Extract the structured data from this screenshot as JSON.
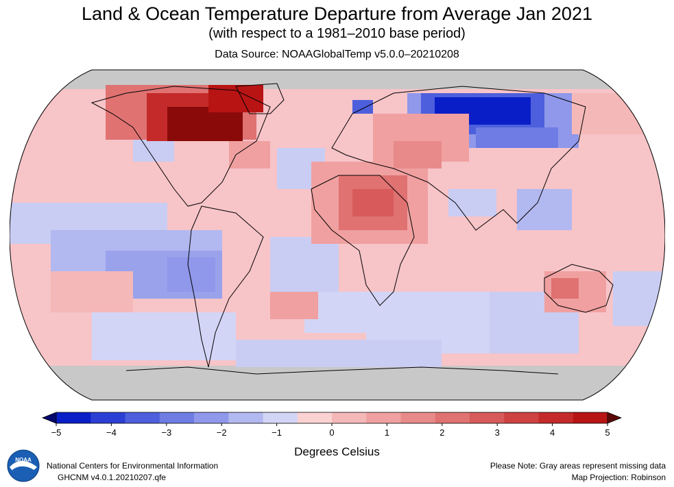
{
  "header": {
    "title": "Land & Ocean Temperature Departure from Average Jan 2021",
    "subtitle": "(with respect to a 1981–2010 base period)",
    "source": "Data Source: NOAAGlobalTemp v5.0.0–20210208"
  },
  "map": {
    "projection": "Robinson",
    "missing_color": "#c8c8c8",
    "anomaly_regions": [
      {
        "region": "northeast-canada-greenland",
        "level": 5
      },
      {
        "region": "hudson-bay",
        "level": 5
      },
      {
        "region": "western-canada",
        "level": 3
      },
      {
        "region": "alaska",
        "level": 3
      },
      {
        "region": "eastern-us",
        "level": 2
      },
      {
        "region": "north-africa",
        "level": 3
      },
      {
        "region": "middle-east",
        "level": 2
      },
      {
        "region": "western-siberia",
        "level": -5
      },
      {
        "region": "central-siberia",
        "level": -4
      },
      {
        "region": "eastern-siberia",
        "level": 1
      },
      {
        "region": "equatorial-pacific",
        "level": -2
      },
      {
        "region": "southeast-pacific",
        "level": -2
      },
      {
        "region": "southern-ocean",
        "level": -1
      },
      {
        "region": "australia-northwest",
        "level": 2
      },
      {
        "region": "south-atlantic",
        "level": 1
      },
      {
        "region": "indian-ocean",
        "level": 1
      }
    ]
  },
  "colorbar": {
    "ticks": [
      "−5",
      "−4",
      "−3",
      "−2",
      "−1",
      "0",
      "1",
      "2",
      "3",
      "4",
      "5"
    ],
    "label": "Degrees Celsius",
    "colors": [
      "#0a1ec8",
      "#2c3fd4",
      "#4d5fdc",
      "#6e7ce3",
      "#8f98ea",
      "#b2b8f0",
      "#d2d5f6",
      "#fad2d2",
      "#f5b8b8",
      "#f0a0a0",
      "#e88a8a",
      "#e07272",
      "#d85a5a",
      "#cf4242",
      "#c52a2a",
      "#b81414"
    ],
    "low_cap": "#05086e",
    "high_cap": "#5a0808"
  },
  "footer": {
    "org_name": "National Centers for Environmental Information",
    "dataset": "GHCNM v4.0.1.20210207.qfe",
    "note": "Please Note: Gray areas represent missing data",
    "projection": "Map Projection: Robinson",
    "logo_text": "NOAA"
  }
}
